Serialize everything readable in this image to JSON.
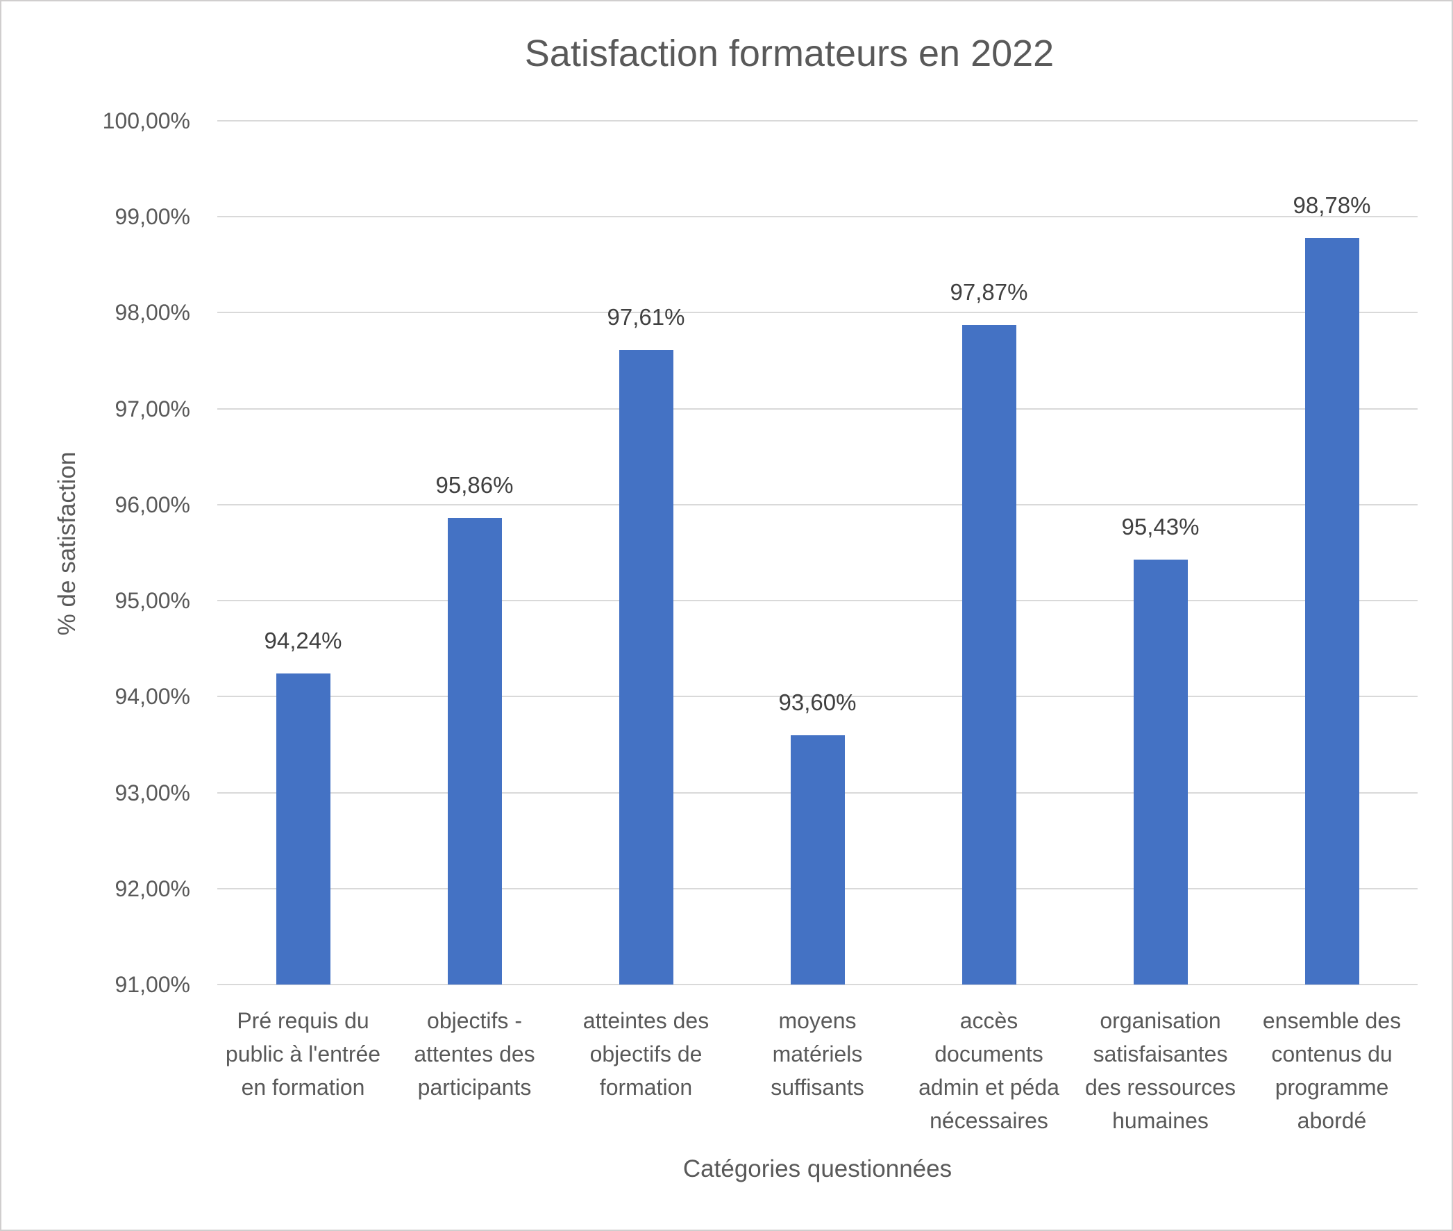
{
  "chart_data": {
    "type": "bar",
    "title": "Satisfaction formateurs en 2022",
    "xlabel": "Catégories questionnées",
    "ylabel": "% de satisfaction",
    "categories": [
      "Pré requis du public à l'entrée en formation",
      "objectifs - attentes des participants",
      "atteintes des objectifs de formation",
      "moyens matériels suffisants",
      "accès documents admin et péda nécessaires",
      "organisation satisfaisantes des ressources humaines",
      "ensemble des contenus du programme abordé"
    ],
    "values": [
      94.24,
      95.86,
      97.61,
      93.6,
      97.87,
      95.43,
      98.78
    ],
    "value_labels": [
      "94,24%",
      "95,86%",
      "97,61%",
      "93,60%",
      "97,87%",
      "95,43%",
      "98,78%"
    ],
    "ylim": [
      91,
      100
    ],
    "ytick_step": 1,
    "ytick_labels": [
      "91,00%",
      "92,00%",
      "93,00%",
      "94,00%",
      "95,00%",
      "96,00%",
      "97,00%",
      "98,00%",
      "99,00%",
      "100,00%"
    ],
    "grid": true,
    "legend": false,
    "colors": {
      "bar": "#4472C4",
      "gridline": "#D9D9D9",
      "axis_text": "#595959",
      "data_label": "#404040",
      "title": "#595959",
      "border": "#D0CECE"
    }
  }
}
